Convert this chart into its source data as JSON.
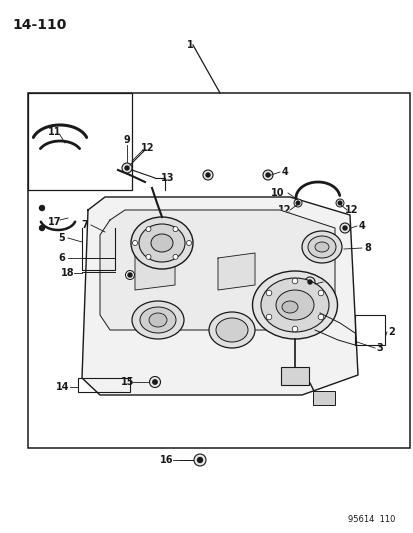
{
  "page_number": "14-110",
  "catalog_number": "95614  110",
  "bg_color": "#ffffff",
  "line_color": "#1a1a1a",
  "gray_fill": "#e8e8e8",
  "dark_gray": "#c0c0c0"
}
